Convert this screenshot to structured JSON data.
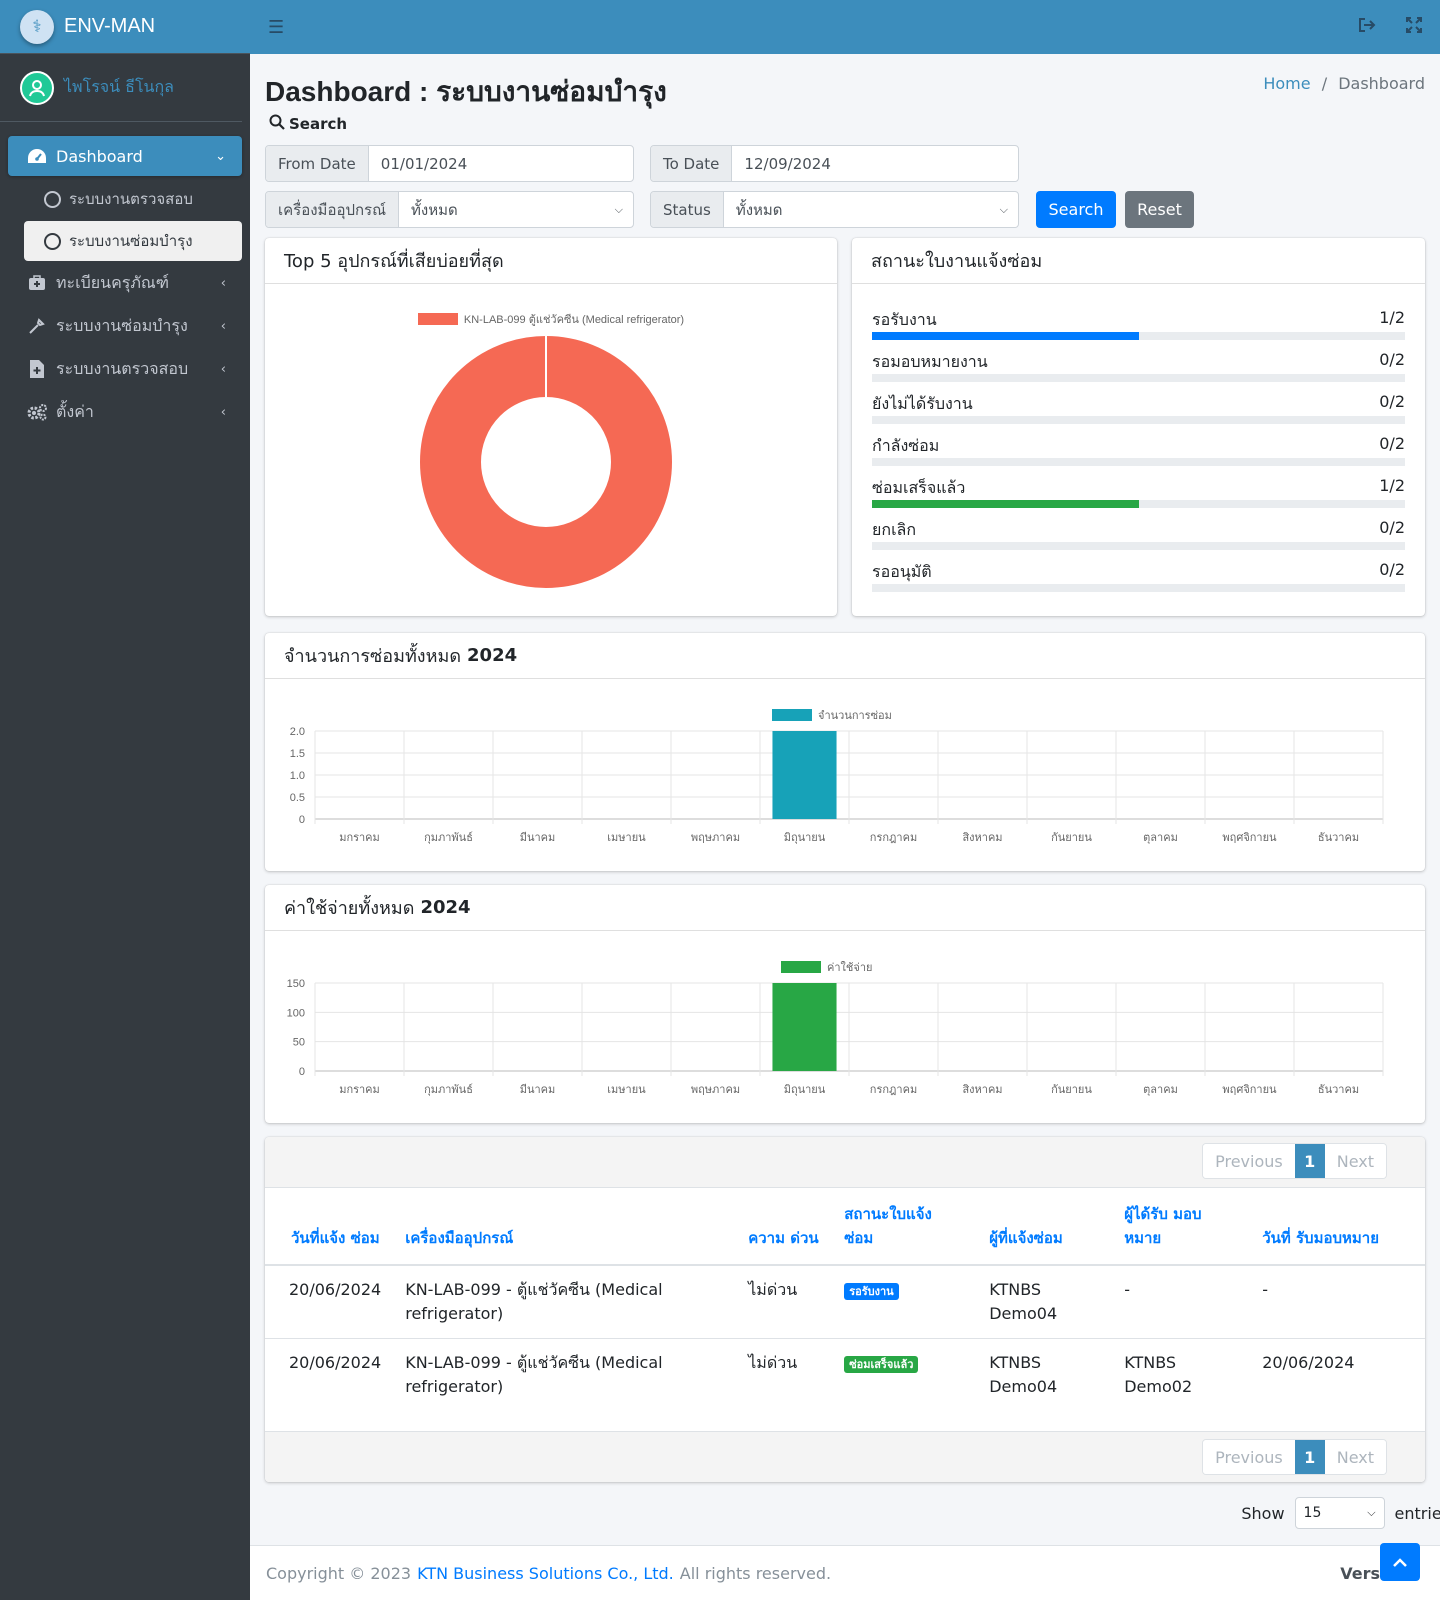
{
  "app": {
    "brand": "ENV-MAN",
    "user_name": "ไพโรจน์ ธีโนกุล"
  },
  "sidebar": {
    "dashboard": "Dashboard",
    "sub_items": [
      "ระบบงานตรวจสอบ",
      "ระบบงานซ่อมบำรุง"
    ],
    "items": [
      "ทะเบียนครุภัณฑ์",
      "ระบบงานซ่อมบำรุง",
      "ระบบงานตรวจสอบ",
      "ตั้งค่า"
    ]
  },
  "header": {
    "title": "Dashboard : ระบบงานซ่อมบำรุง",
    "breadcrumb_home": "Home",
    "breadcrumb_sep": "/",
    "breadcrumb_current": "Dashboard"
  },
  "filters": {
    "search_title": "Search",
    "from_label": "From Date",
    "from_value": "01/01/2024",
    "to_label": "To Date",
    "to_value": "12/09/2024",
    "equipment_label": "เครื่องมืออุปกรณ์",
    "equipment_value": "ทั้งหมด",
    "status_label": "Status",
    "status_value": "ทั้งหมด",
    "search_button": "Search",
    "reset_button": "Reset"
  },
  "top5": {
    "title": "Top 5 อุปกรณ์ที่เสียบ่อยที่สุด",
    "legend": "KN-LAB-099 ตู้แช่วัคซีน (Medical refrigerator)",
    "color": "#f56954"
  },
  "status_card": {
    "title": "สถานะใบงานแจ้งซ่อม",
    "rows": [
      {
        "label": "รอรับงาน",
        "count": "1/2",
        "ratio": 0.5,
        "color": "#007bff"
      },
      {
        "label": "รอมอบหมายงาน",
        "count": "0/2",
        "ratio": 0,
        "color": "#007bff"
      },
      {
        "label": "ยังไม่ได้รับงาน",
        "count": "0/2",
        "ratio": 0,
        "color": "#007bff"
      },
      {
        "label": "กำลังซ่อม",
        "count": "0/2",
        "ratio": 0,
        "color": "#007bff"
      },
      {
        "label": "ซ่อมเสร็จแล้ว",
        "count": "1/2",
        "ratio": 0.5,
        "color": "#28a745"
      },
      {
        "label": "ยกเลิก",
        "count": "0/2",
        "ratio": 0,
        "color": "#007bff"
      },
      {
        "label": "รออนุมัติ",
        "count": "0/2",
        "ratio": 0,
        "color": "#007bff"
      }
    ]
  },
  "repair_count_card": {
    "title_prefix": "จำนวนการซ่อมทั้งหมด",
    "year": "2024"
  },
  "cost_card": {
    "title_prefix": "ค่าใช้จ่ายทั้งหมด",
    "year": "2024"
  },
  "chart_data": [
    {
      "type": "pie",
      "categories": [
        "KN-LAB-099 ตู้แช่วัคซีน (Medical refrigerator)"
      ],
      "values": [
        1
      ],
      "colors": [
        "#f56954"
      ],
      "donut": true
    },
    {
      "type": "bar",
      "categories": [
        "มกราคม",
        "กุมภาพันธ์",
        "มีนาคม",
        "เมษายน",
        "พฤษภาคม",
        "มิถุนายน",
        "กรกฎาคม",
        "สิงหาคม",
        "กันยายน",
        "ตุลาคม",
        "พฤศจิกายน",
        "ธันวาคม"
      ],
      "series": [
        {
          "name": "จำนวนการซ่อม",
          "values": [
            0,
            0,
            0,
            0,
            0,
            2,
            0,
            0,
            0,
            0,
            0,
            0
          ],
          "color": "#17a2b8"
        }
      ],
      "ylim": [
        0,
        2
      ],
      "yticks": [
        "2.0",
        "1.5",
        "1.0",
        "0.5",
        "0"
      ],
      "legend": "top"
    },
    {
      "type": "bar",
      "categories": [
        "มกราคม",
        "กุมภาพันธ์",
        "มีนาคม",
        "เมษายน",
        "พฤษภาคม",
        "มิถุนายน",
        "กรกฎาคม",
        "สิงหาคม",
        "กันยายน",
        "ตุลาคม",
        "พฤศจิกายน",
        "ธันวาคม"
      ],
      "series": [
        {
          "name": "ค่าใช้จ่าย",
          "values": [
            0,
            0,
            0,
            0,
            0,
            150,
            0,
            0,
            0,
            0,
            0,
            0
          ],
          "color": "#28a745"
        }
      ],
      "ylim": [
        0,
        150
      ],
      "yticks": [
        "150",
        "100",
        "50",
        "0"
      ],
      "legend": "top"
    }
  ],
  "table": {
    "pager_prev": "Previous",
    "pager_page": "1",
    "pager_next": "Next",
    "headers": [
      "วันที่แจ้ง ซ่อม",
      "เครื่องมืออุปกรณ์",
      "ความ ด่วน",
      "สถานะใบแจ้ง ซ่อม",
      "ผู้ที่แจ้งซ่อม",
      "ผู้ได้รับ มอบหมาย",
      "วันที่ รับมอบหมาย"
    ],
    "rows": [
      {
        "date": "20/06/2024",
        "equipment": "KN-LAB-099 - ตู้แช่วัคซีน (Medical refrigerator)",
        "urgency": "ไม่ด่วน",
        "status": "รอรับงาน",
        "status_color": "#007bff",
        "reporter": "KTNBS Demo04",
        "assignee": "-",
        "assign_date": "-"
      },
      {
        "date": "20/06/2024",
        "equipment": "KN-LAB-099 - ตู้แช่วัคซีน (Medical refrigerator)",
        "urgency": "ไม่ด่วน",
        "status": "ซ่อมเสร็จแล้ว",
        "status_color": "#28a745",
        "reporter": "KTNBS Demo04",
        "assignee": "KTNBS Demo02",
        "assign_date": "20/06/2024"
      }
    ],
    "show_label": "Show",
    "show_value": "15",
    "entries_label": "entries"
  },
  "footer": {
    "copyright": "Copyright © 2023",
    "company": "KTN Business Solutions Co., Ltd.",
    "rights": "All rights reserved.",
    "version": "Vers"
  }
}
